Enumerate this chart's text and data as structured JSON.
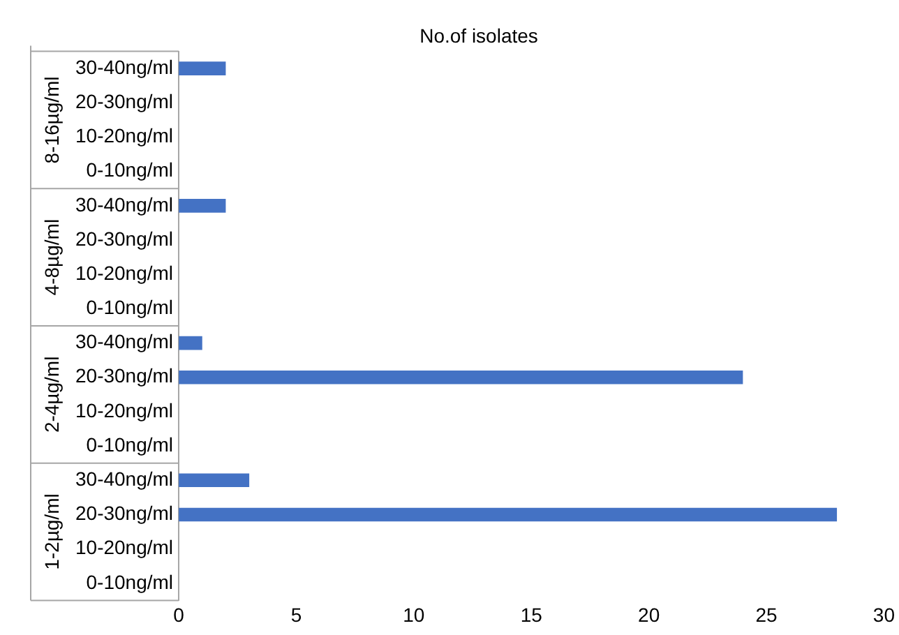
{
  "chart_data": {
    "type": "bar",
    "orientation": "horizontal",
    "title": "No.of isolates",
    "categories": [
      "30-40ng/ml",
      "20-30ng/ml",
      "10-20ng/ml",
      "0-10ng/ml",
      "30-40ng/ml",
      "20-30ng/ml",
      "10-20ng/ml",
      "0-10ng/ml",
      "30-40ng/ml",
      "20-30ng/ml",
      "10-20ng/ml",
      "0-10ng/ml",
      "30-40ng/ml",
      "20-30ng/ml",
      "10-20ng/ml",
      "0-10ng/ml"
    ],
    "values": [
      2,
      null,
      null,
      null,
      2,
      null,
      null,
      null,
      1,
      24,
      null,
      null,
      3,
      28,
      null,
      null
    ],
    "color": "#4472c4",
    "xlim": [
      0,
      30
    ],
    "xticks": [
      0,
      5,
      10,
      15,
      20,
      25,
      30
    ],
    "annotations": [
      "8-16µg/ml",
      "4-8µg/ml",
      "2-4µg/ml",
      "1-2µg/ml"
    ],
    "grid": false,
    "legend": false
  }
}
